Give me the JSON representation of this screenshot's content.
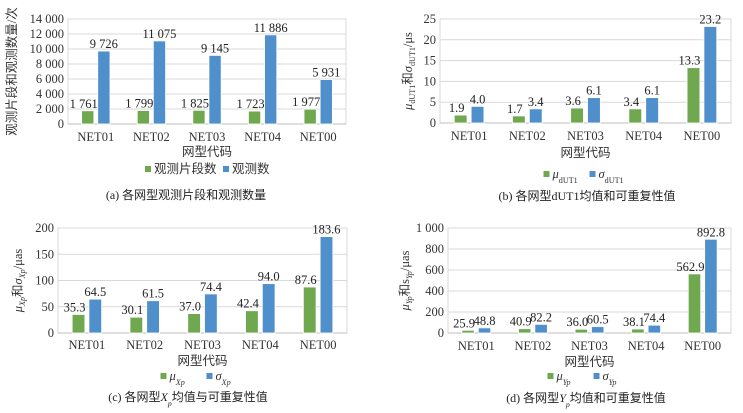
{
  "colors": {
    "series1": "#70a84f",
    "series2": "#4f8fcb",
    "grid": "#d9d9d9",
    "axis": "#bfbfbf"
  },
  "chart_data": [
    {
      "type": "bar",
      "id": "a",
      "caption": [
        {
          "t": "(a) 各网型观测片段和观测数量"
        }
      ],
      "xlabel": "网型代码",
      "ylabel": [
        {
          "t": "观测片段和观测数量/次"
        }
      ],
      "ylim": [
        0,
        14000
      ],
      "yticks": [
        0,
        2000,
        4000,
        6000,
        8000,
        10000,
        12000,
        14000
      ],
      "ytick_labels": [
        "0",
        "2 000",
        "4 000",
        "6 000",
        "8 000",
        "10 000",
        "12 000",
        "14 000"
      ],
      "grid": true,
      "legend": "bottom",
      "categories": [
        "NET01",
        "NET02",
        "NET03",
        "NET04",
        "NET00"
      ],
      "series": [
        {
          "name": [
            {
              "t": "观测片段数"
            }
          ],
          "values": [
            1761,
            1799,
            1825,
            1723,
            1977
          ],
          "labels": [
            "1 761",
            "1 799",
            "1 825",
            "1 723",
            "1 977"
          ]
        },
        {
          "name": [
            {
              "t": "观测数"
            }
          ],
          "values": [
            9726,
            11075,
            9145,
            11886,
            5931
          ],
          "labels": [
            "9 726",
            "11 075",
            "9 145",
            "11 886",
            "5 931"
          ]
        }
      ]
    },
    {
      "type": "bar",
      "id": "b",
      "caption": [
        {
          "t": "(b) 各网型dUT1均值和可重复性值"
        }
      ],
      "xlabel": "网型代码",
      "ylabel": [
        {
          "t": "μ",
          "i": true
        },
        {
          "t": "dUT1",
          "s": true
        },
        {
          "t": "和"
        },
        {
          "t": "σ",
          "i": true
        },
        {
          "t": "dUT1",
          "s": true
        },
        {
          "t": "/μs"
        }
      ],
      "ylim": [
        0,
        25
      ],
      "yticks": [
        0,
        5,
        10,
        15,
        20,
        25
      ],
      "ytick_labels": [
        "0",
        "5",
        "10",
        "15",
        "20",
        "25"
      ],
      "grid": true,
      "legend": "bottom",
      "categories": [
        "NET01",
        "NET02",
        "NET03",
        "NET04",
        "NET00"
      ],
      "series": [
        {
          "name": [
            {
              "t": "μ",
              "i": true
            },
            {
              "t": "dUT1",
              "s": true
            }
          ],
          "values": [
            1.9,
            1.7,
            3.6,
            3.4,
            13.3
          ],
          "labels": [
            "1.9",
            "1.7",
            "3.6",
            "3.4",
            "13.3"
          ]
        },
        {
          "name": [
            {
              "t": "σ",
              "i": true
            },
            {
              "t": "dUT1",
              "s": true
            }
          ],
          "values": [
            4.0,
            3.4,
            6.1,
            6.1,
            23.2
          ],
          "labels": [
            "4.0",
            "3.4",
            "6.1",
            "6.1",
            "23.2"
          ]
        }
      ]
    },
    {
      "type": "bar",
      "id": "c",
      "caption": [
        {
          "t": "(c) 各网型"
        },
        {
          "t": "X",
          "i": true
        },
        {
          "t": "p",
          "s": true,
          "i": true
        },
        {
          "t": "均值与可重复性值"
        }
      ],
      "xlabel": "网型代码",
      "ylabel": [
        {
          "t": "μ",
          "i": true
        },
        {
          "t": "Xp",
          "s": true,
          "i": true
        },
        {
          "t": "和"
        },
        {
          "t": "σ",
          "i": true
        },
        {
          "t": "Xp",
          "s": true,
          "i": true
        },
        {
          "t": "/μas"
        }
      ],
      "ylim": [
        0,
        200
      ],
      "yticks": [
        0,
        50,
        100,
        150,
        200
      ],
      "ytick_labels": [
        "0",
        "50",
        "100",
        "150",
        "200"
      ],
      "grid": true,
      "legend": "bottom",
      "categories": [
        "NET01",
        "NET02",
        "NET03",
        "NET04",
        "NET00"
      ],
      "series": [
        {
          "name": [
            {
              "t": "μ",
              "i": true
            },
            {
              "t": "Xp",
              "s": true,
              "i": true
            }
          ],
          "values": [
            35.3,
            30.1,
            37.0,
            42.4,
            87.6
          ],
          "labels": [
            "35.3",
            "30.1",
            "37.0",
            "42.4",
            "87.6"
          ]
        },
        {
          "name": [
            {
              "t": "σ",
              "i": true
            },
            {
              "t": "Xp",
              "s": true,
              "i": true
            }
          ],
          "values": [
            64.5,
            61.5,
            74.4,
            94.0,
            183.6
          ],
          "labels": [
            "64.5",
            "61.5",
            "74.4",
            "94.0",
            "183.6"
          ]
        }
      ]
    },
    {
      "type": "bar",
      "id": "d",
      "caption": [
        {
          "t": "(d) 各网型"
        },
        {
          "t": "Y",
          "i": true
        },
        {
          "t": "p",
          "s": true,
          "i": true
        },
        {
          "t": "均值和可重复性值"
        }
      ],
      "xlabel": "网型代码",
      "ylabel": [
        {
          "t": "μ",
          "i": true
        },
        {
          "t": "Yp",
          "s": true,
          "i": true
        },
        {
          "t": "和s"
        },
        {
          "t": "Yp",
          "s": true,
          "i": true
        },
        {
          "t": "/μas"
        }
      ],
      "ylim": [
        0,
        1000
      ],
      "yticks": [
        0,
        200,
        400,
        600,
        800,
        1000
      ],
      "ytick_labels": [
        "0",
        "200",
        "400",
        "600",
        "800",
        "1 000"
      ],
      "grid": true,
      "legend": "bottom",
      "categories": [
        "NET01",
        "NET02",
        "NET03",
        "NET04",
        "NET00"
      ],
      "series": [
        {
          "name": [
            {
              "t": "μ",
              "i": true
            },
            {
              "t": "Yp",
              "s": true,
              "i": true
            }
          ],
          "values": [
            25.9,
            40.9,
            36.0,
            38.1,
            562.9
          ],
          "labels": [
            "25.9",
            "40.9",
            "36.0",
            "38.1",
            "562.9"
          ]
        },
        {
          "name": [
            {
              "t": "σ",
              "i": true
            },
            {
              "t": "Yp",
              "s": true,
              "i": true
            }
          ],
          "values": [
            48.8,
            82.2,
            60.5,
            74.4,
            892.8
          ],
          "labels": [
            "48.8",
            "82.2",
            "60.5",
            "74.4",
            "892.8"
          ]
        }
      ]
    }
  ]
}
